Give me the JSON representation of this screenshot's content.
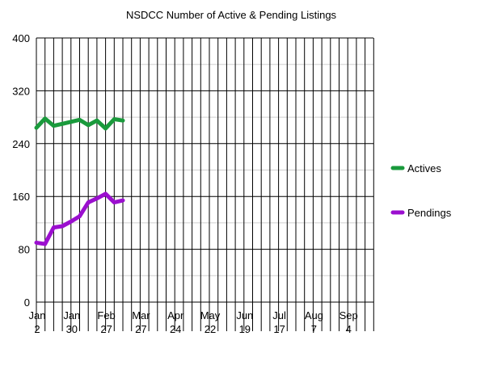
{
  "chart_data": {
    "type": "line",
    "title": "NSDCC Number of Active & Pending Listings",
    "xlabel": "",
    "ylabel": "",
    "ylim": [
      0,
      400
    ],
    "yticks": [
      0,
      80,
      160,
      240,
      320,
      400
    ],
    "x_tick_labels": [
      [
        "Jan",
        "2"
      ],
      [
        "Jan",
        "30"
      ],
      [
        "Feb",
        "27"
      ],
      [
        "Mar",
        "27"
      ],
      [
        "Apr",
        "24"
      ],
      [
        "May",
        "22"
      ],
      [
        "Jun",
        "19"
      ],
      [
        "Jul",
        "17"
      ],
      [
        "Aug",
        "7"
      ],
      [
        "Sep",
        "4"
      ]
    ],
    "grid": true,
    "legend_position": "right",
    "series": [
      {
        "name": "Actives",
        "color": "#1a9a3c",
        "values": [
          264,
          278,
          267,
          270,
          273,
          276,
          268,
          275,
          263,
          277,
          275
        ]
      },
      {
        "name": "Pendings",
        "color": "#9b0fcf",
        "values": [
          90,
          88,
          113,
          115,
          122,
          130,
          151,
          157,
          164,
          151,
          154
        ]
      }
    ]
  }
}
